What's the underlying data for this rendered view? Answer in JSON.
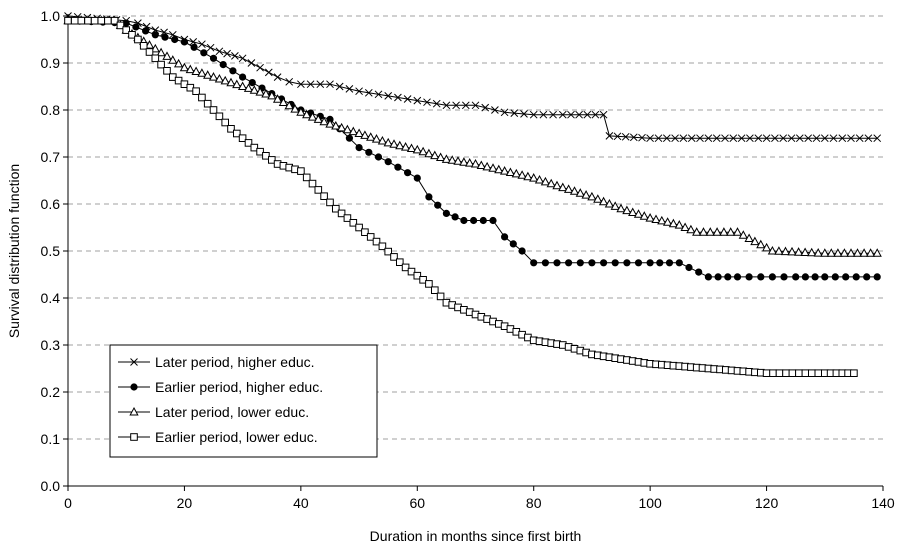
{
  "chart_data": {
    "type": "line",
    "title": "",
    "xlabel": "Duration in months since first birth",
    "ylabel": "Survival distribution function",
    "xlim": [
      0,
      140
    ],
    "ylim": [
      0,
      1.0
    ],
    "x_ticks": [
      "0",
      "20",
      "40",
      "60",
      "80",
      "100",
      "120",
      "140"
    ],
    "y_ticks": [
      "0.0",
      "0.1",
      "0.2",
      "0.3",
      "0.4",
      "0.5",
      "0.6",
      "0.7",
      "0.8",
      "0.9",
      "1.0"
    ],
    "grid": "horizontal dashed",
    "legend_position": "bottom-left",
    "series": [
      {
        "name": "Later period, higher educ.",
        "marker": "x",
        "color": "#000000",
        "points": [
          [
            0,
            1.0
          ],
          [
            5,
            0.995
          ],
          [
            10,
            0.99
          ],
          [
            12,
            0.985
          ],
          [
            15,
            0.97
          ],
          [
            18,
            0.96
          ],
          [
            20,
            0.95
          ],
          [
            23,
            0.94
          ],
          [
            26,
            0.925
          ],
          [
            30,
            0.91
          ],
          [
            33,
            0.89
          ],
          [
            36,
            0.87
          ],
          [
            38,
            0.86
          ],
          [
            40,
            0.855
          ],
          [
            45,
            0.855
          ],
          [
            50,
            0.84
          ],
          [
            55,
            0.83
          ],
          [
            60,
            0.82
          ],
          [
            65,
            0.81
          ],
          [
            70,
            0.81
          ],
          [
            75,
            0.795
          ],
          [
            80,
            0.79
          ],
          [
            85,
            0.79
          ],
          [
            92,
            0.79
          ],
          [
            93,
            0.745
          ],
          [
            100,
            0.74
          ],
          [
            110,
            0.74
          ],
          [
            120,
            0.74
          ],
          [
            130,
            0.74
          ],
          [
            139,
            0.74
          ]
        ]
      },
      {
        "name": "Earlier period, higher educ.",
        "marker": "filled-circle",
        "color": "#000000",
        "points": [
          [
            0,
            0.99
          ],
          [
            10,
            0.985
          ],
          [
            15,
            0.96
          ],
          [
            20,
            0.945
          ],
          [
            25,
            0.91
          ],
          [
            30,
            0.87
          ],
          [
            35,
            0.835
          ],
          [
            40,
            0.8
          ],
          [
            45,
            0.78
          ],
          [
            50,
            0.72
          ],
          [
            55,
            0.69
          ],
          [
            60,
            0.655
          ],
          [
            62,
            0.615
          ],
          [
            65,
            0.58
          ],
          [
            68,
            0.565
          ],
          [
            73,
            0.565
          ],
          [
            75,
            0.53
          ],
          [
            78,
            0.5
          ],
          [
            80,
            0.475
          ],
          [
            90,
            0.475
          ],
          [
            100,
            0.475
          ],
          [
            105,
            0.475
          ],
          [
            110,
            0.445
          ],
          [
            115,
            0.445
          ],
          [
            125,
            0.445
          ],
          [
            130,
            0.445
          ],
          [
            139,
            0.445
          ]
        ]
      },
      {
        "name": "Later period, lower educ.",
        "marker": "open-triangle",
        "color": "#000000",
        "points": [
          [
            0,
            0.99
          ],
          [
            8,
            0.99
          ],
          [
            10,
            0.97
          ],
          [
            15,
            0.93
          ],
          [
            20,
            0.89
          ],
          [
            25,
            0.87
          ],
          [
            30,
            0.85
          ],
          [
            35,
            0.83
          ],
          [
            40,
            0.795
          ],
          [
            45,
            0.77
          ],
          [
            50,
            0.75
          ],
          [
            55,
            0.73
          ],
          [
            60,
            0.715
          ],
          [
            65,
            0.695
          ],
          [
            70,
            0.685
          ],
          [
            75,
            0.67
          ],
          [
            80,
            0.655
          ],
          [
            85,
            0.635
          ],
          [
            90,
            0.615
          ],
          [
            95,
            0.59
          ],
          [
            100,
            0.57
          ],
          [
            105,
            0.555
          ],
          [
            108,
            0.54
          ],
          [
            115,
            0.54
          ],
          [
            118,
            0.52
          ],
          [
            121,
            0.5
          ],
          [
            130,
            0.495
          ],
          [
            139,
            0.495
          ]
        ]
      },
      {
        "name": "Earlier period, lower educ.",
        "marker": "open-square",
        "color": "#000000",
        "points": [
          [
            0,
            0.99
          ],
          [
            8,
            0.99
          ],
          [
            12,
            0.95
          ],
          [
            15,
            0.91
          ],
          [
            18,
            0.87
          ],
          [
            22,
            0.84
          ],
          [
            25,
            0.8
          ],
          [
            28,
            0.76
          ],
          [
            32,
            0.72
          ],
          [
            36,
            0.685
          ],
          [
            40,
            0.67
          ],
          [
            43,
            0.63
          ],
          [
            46,
            0.59
          ],
          [
            50,
            0.55
          ],
          [
            54,
            0.51
          ],
          [
            58,
            0.465
          ],
          [
            62,
            0.43
          ],
          [
            65,
            0.39
          ],
          [
            70,
            0.365
          ],
          [
            75,
            0.34
          ],
          [
            80,
            0.31
          ],
          [
            85,
            0.3
          ],
          [
            90,
            0.28
          ],
          [
            95,
            0.27
          ],
          [
            100,
            0.26
          ],
          [
            105,
            0.255
          ],
          [
            110,
            0.25
          ],
          [
            115,
            0.245
          ],
          [
            120,
            0.24
          ],
          [
            130,
            0.24
          ],
          [
            135,
            0.24
          ]
        ]
      }
    ]
  }
}
